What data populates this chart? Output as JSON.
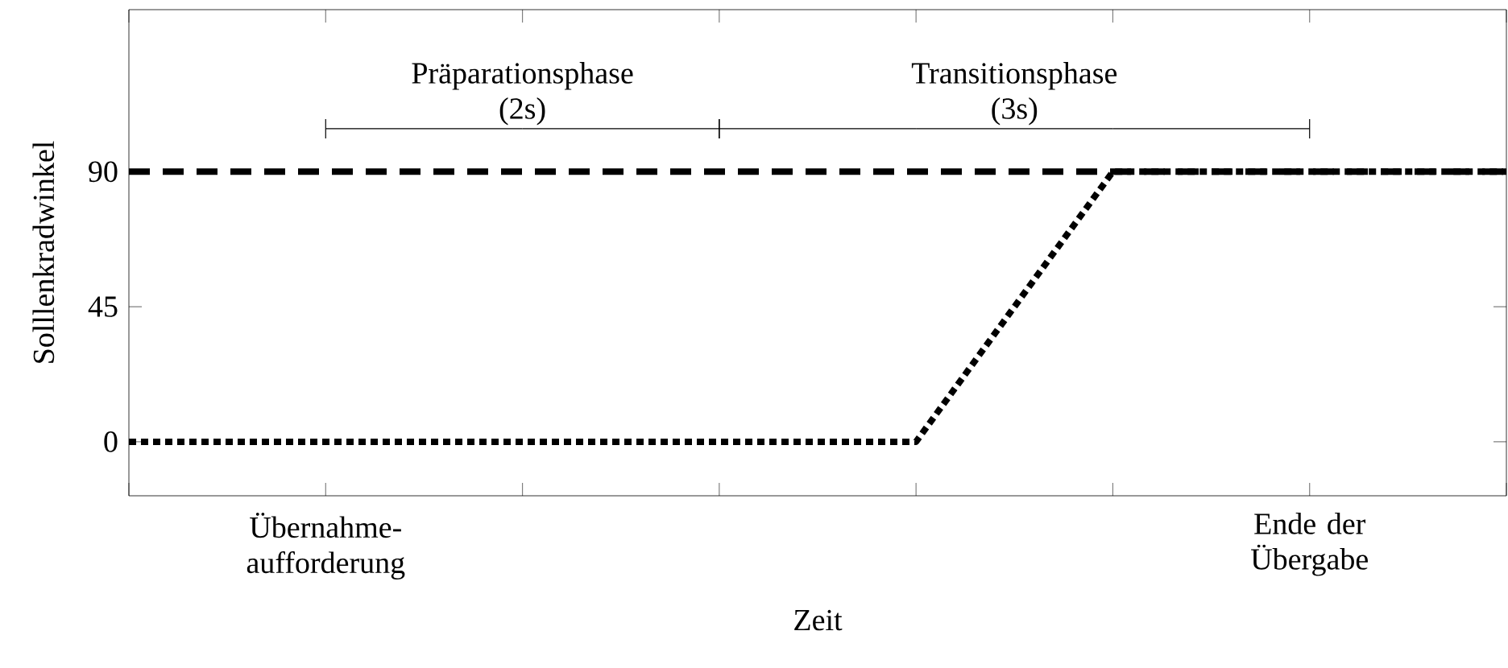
{
  "chart_data": {
    "type": "line",
    "xlabel": "Zeit",
    "ylabel": "Solllenkradwinkel",
    "categories": [
      null,
      "Übernahme-aufforderung",
      null,
      null,
      null,
      null,
      "Ende der Übergabe",
      null
    ],
    "ylim": [
      -18,
      144
    ],
    "yticks": [
      0,
      45,
      90
    ],
    "series": [
      {
        "values": [
          90,
          90,
          90,
          90,
          90,
          90,
          90,
          90
        ],
        "color": "#000000",
        "line_style": "dashed"
      },
      {
        "values": [
          0,
          0,
          0,
          0,
          0,
          90,
          90,
          90
        ],
        "color": "#000000",
        "line_style": "dotted"
      }
    ],
    "annotations": [
      "Präparationsphase (2s)",
      "Transitionsphase (3s)"
    ],
    "grid": false,
    "marker": "none"
  }
}
